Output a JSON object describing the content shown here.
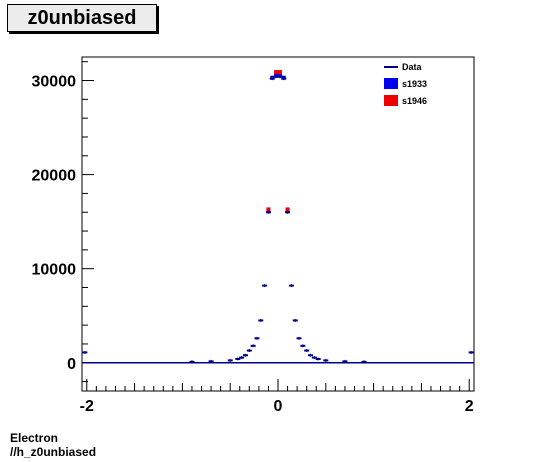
{
  "histogram_title": "z0unbiased",
  "footer": {
    "line1": "Electron",
    "line2": "//h_z0unbiased"
  },
  "colors": {
    "data": "#00008b",
    "s1933": "#0000ee",
    "s1946": "#ee0000"
  },
  "chart_data": {
    "type": "scatter",
    "title": "z0unbiased",
    "xlabel": "",
    "ylabel": "",
    "xlim": [
      -2.05,
      2.05
    ],
    "ylim": [
      -3000,
      32500
    ],
    "xticks": [
      {
        "v": -2,
        "label": "-2"
      },
      {
        "v": 0,
        "label": "0"
      },
      {
        "v": 2,
        "label": "2"
      }
    ],
    "yticks": [
      {
        "v": 0,
        "label": "0"
      },
      {
        "v": 10000,
        "label": "10000"
      },
      {
        "v": 20000,
        "label": "20000"
      },
      {
        "v": 30000,
        "label": "30000"
      }
    ],
    "legend": {
      "placement": "top-right",
      "entries": [
        {
          "label": "Data",
          "style": "line",
          "color": "#00008b"
        },
        {
          "label": "s1933",
          "style": "box",
          "color": "#0000ee"
        },
        {
          "label": "s1946",
          "style": "box",
          "color": "#ee0000"
        }
      ]
    },
    "series": [
      {
        "name": "Data",
        "x": [
          -2.02,
          -0.9,
          -0.7,
          -0.5,
          -0.42,
          -0.38,
          -0.34,
          -0.3,
          -0.26,
          -0.22,
          -0.18,
          -0.14,
          -0.1,
          -0.06,
          -0.02,
          0.02,
          0.06,
          0.1,
          0.14,
          0.18,
          0.22,
          0.26,
          0.3,
          0.34,
          0.38,
          0.42,
          0.5,
          0.7,
          0.9,
          2.02
        ],
        "y": [
          1100,
          100,
          150,
          250,
          400,
          550,
          800,
          1300,
          1800,
          2600,
          4500,
          8200,
          16000,
          30200,
          30400,
          30400,
          30200,
          16000,
          8200,
          4500,
          2600,
          1800,
          1300,
          800,
          550,
          400,
          250,
          150,
          100,
          1100
        ]
      },
      {
        "name": "s1933",
        "x": [
          -0.1,
          -0.06,
          -0.02,
          0.02,
          0.06,
          0.1
        ],
        "y": [
          16100,
          30300,
          30600,
          30600,
          30300,
          16100
        ]
      },
      {
        "name": "s1946",
        "x": [
          -0.1,
          -0.02,
          0.02,
          0.1
        ],
        "y": [
          16300,
          30900,
          30900,
          16300
        ]
      }
    ]
  }
}
